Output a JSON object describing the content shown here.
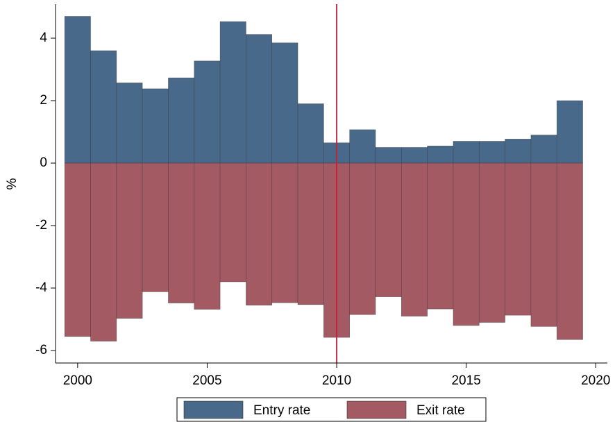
{
  "chart_data": {
    "type": "bar",
    "y_label": "%",
    "x": [
      2000,
      2001,
      2002,
      2003,
      2004,
      2005,
      2006,
      2007,
      2008,
      2009,
      2010,
      2011,
      2012,
      2013,
      2014,
      2015,
      2016,
      2017,
      2018,
      2019
    ],
    "series": [
      {
        "name": "Entry rate",
        "color": "#48698a",
        "values": [
          4.7,
          3.6,
          2.57,
          2.38,
          2.73,
          3.27,
          4.53,
          4.12,
          3.85,
          1.9,
          0.65,
          1.07,
          0.5,
          0.5,
          0.55,
          0.7,
          0.7,
          0.77,
          0.9,
          2.0
        ]
      },
      {
        "name": "Exit rate",
        "color": "#a45a62",
        "values": [
          -5.55,
          -5.7,
          -4.97,
          -4.12,
          -4.48,
          -4.68,
          -3.8,
          -4.55,
          -4.47,
          -4.53,
          -5.58,
          -4.85,
          -4.28,
          -4.9,
          -4.67,
          -5.2,
          -5.1,
          -4.87,
          -5.23,
          -5.65
        ]
      }
    ],
    "xlim": [
      1999.2,
      2020.45
    ],
    "xticks": [
      2000,
      2005,
      2010,
      2015,
      2020
    ],
    "ylim": [
      -6.4,
      5.0
    ],
    "yticks": [
      -6,
      -4,
      -2,
      0,
      2,
      4
    ],
    "xline": 2010,
    "xline_color": "#c41e3a",
    "legend": "bottom"
  }
}
